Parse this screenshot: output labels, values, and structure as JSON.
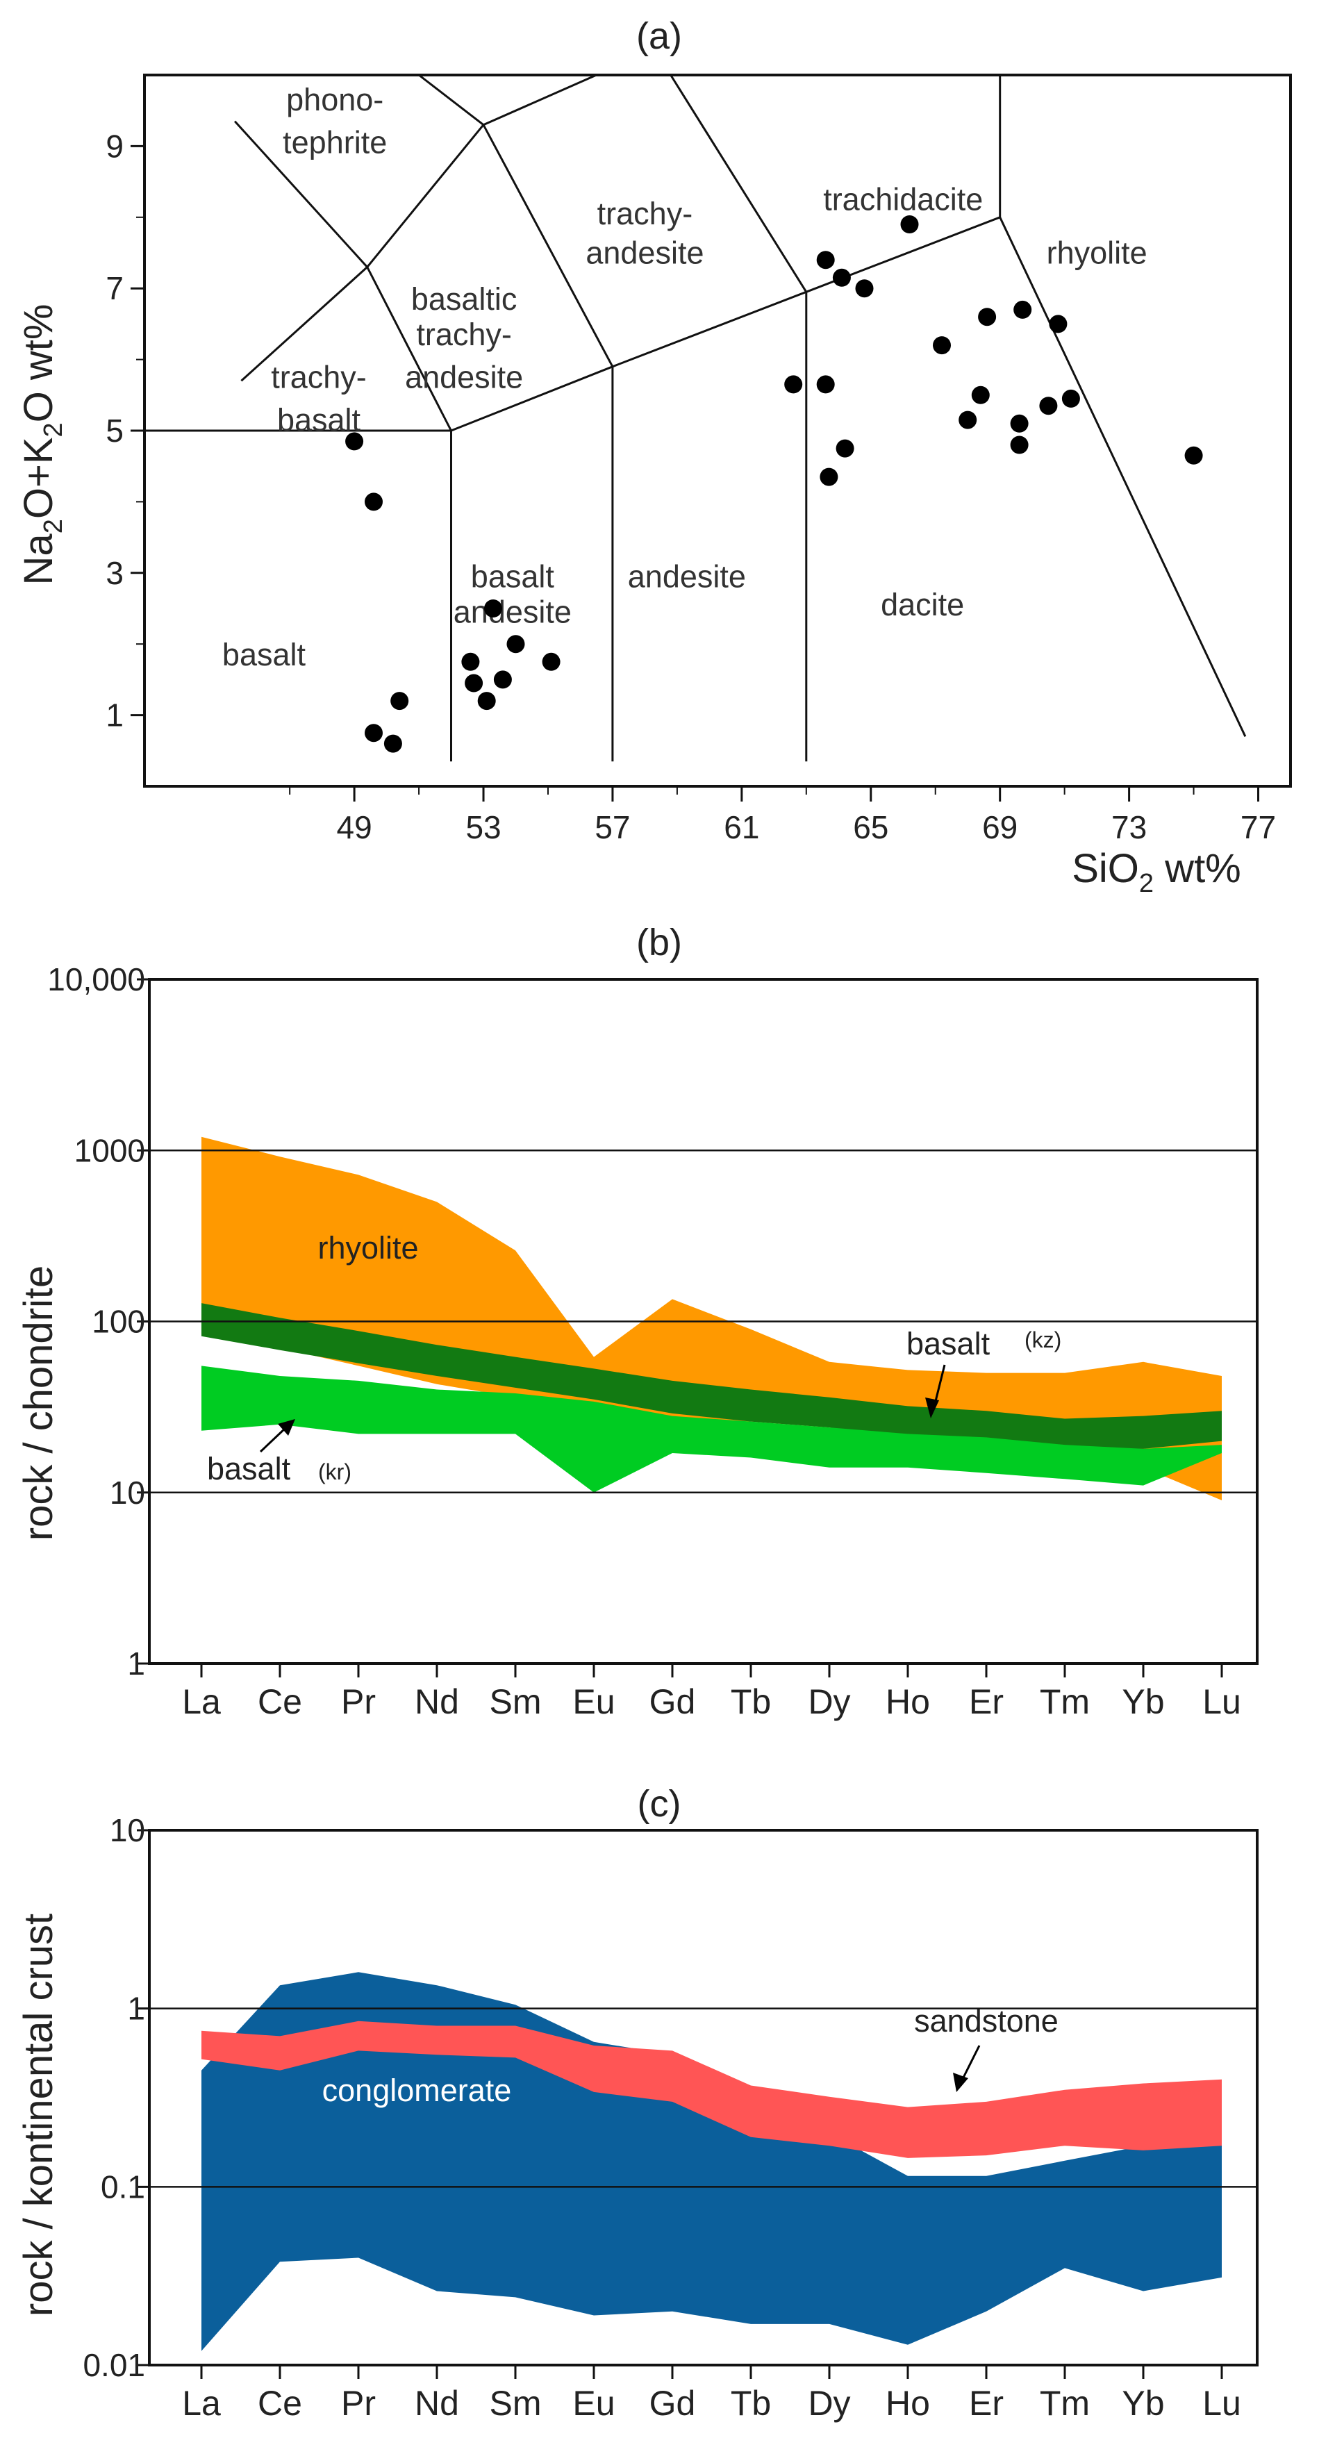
{
  "chart_data": [
    {
      "type": "scatter",
      "panel": "(a)",
      "title": "(a)",
      "xlabel": "SiO2 wt%",
      "ylabel": "Na2O+K2O wt%",
      "xlim": [
        42.5,
        78
      ],
      "ylim": [
        0,
        10
      ],
      "xticks": [
        49,
        53,
        57,
        61,
        65,
        69,
        73,
        77
      ],
      "yticks": [
        1,
        3,
        5,
        7,
        9
      ],
      "field_labels": [
        "phono-",
        "tephrite",
        "basaltic",
        "trachy-",
        "andesite",
        "trachy-",
        "andesite",
        "trachidacite",
        "rhyolite",
        "trachy-",
        "basalt",
        "basalt",
        "andesite",
        "andesite",
        "dacite",
        "basalt"
      ],
      "points": [
        [
          49,
          4.85
        ],
        [
          49.6,
          4.0
        ],
        [
          49.6,
          0.75
        ],
        [
          50.2,
          0.6
        ],
        [
          50.4,
          1.2
        ],
        [
          52.6,
          1.75
        ],
        [
          52.7,
          1.45
        ],
        [
          53.1,
          1.2
        ],
        [
          53.3,
          2.5
        ],
        [
          53.6,
          1.5
        ],
        [
          54.0,
          2.0
        ],
        [
          55.1,
          1.75
        ],
        [
          62.6,
          5.65
        ],
        [
          63.6,
          7.4
        ],
        [
          63.6,
          5.65
        ],
        [
          63.7,
          4.35
        ],
        [
          64.1,
          7.15
        ],
        [
          64.2,
          4.75
        ],
        [
          64.8,
          7.0
        ],
        [
          66.2,
          7.9
        ],
        [
          67.2,
          6.2
        ],
        [
          68.0,
          5.15
        ],
        [
          68.4,
          5.5
        ],
        [
          68.6,
          6.6
        ],
        [
          69.6,
          4.8
        ],
        [
          69.6,
          5.1
        ],
        [
          69.7,
          6.7
        ],
        [
          70.5,
          5.35
        ],
        [
          70.8,
          6.5
        ],
        [
          71.2,
          5.45
        ],
        [
          75.0,
          4.65
        ]
      ]
    },
    {
      "type": "area",
      "panel": "(b)",
      "title": "(b)",
      "ylabel": "rock / chondrite",
      "yscale": "log",
      "ylim": [
        1,
        10000
      ],
      "ytick_labels": [
        "1",
        "10",
        "100",
        "1000",
        "10,000"
      ],
      "categories": [
        "La",
        "Ce",
        "Pr",
        "Nd",
        "Sm",
        "Eu",
        "Gd",
        "Tb",
        "Dy",
        "Ho",
        "Er",
        "Tm",
        "Yb",
        "Lu"
      ],
      "series": [
        {
          "name": "rhyolite",
          "label": "rhyolite",
          "color": "#FF9900",
          "upper": [
            1200,
            920,
            720,
            500,
            260,
            62,
            135,
            90,
            58,
            52,
            50,
            50,
            58,
            48
          ],
          "lower": [
            85,
            70,
            55,
            43,
            36,
            22,
            25,
            26,
            24,
            20,
            17,
            16,
            14,
            9
          ]
        },
        {
          "name": "basalt (kz)",
          "label": "basalt",
          "sub": "(kz)",
          "color": "#127A12",
          "upper": [
            128,
            105,
            88,
            73,
            62,
            53,
            45,
            40,
            36,
            32,
            30,
            27,
            28,
            30
          ],
          "lower": [
            82,
            68,
            57,
            48,
            41,
            35,
            29,
            26,
            24,
            21,
            19,
            18,
            18,
            20
          ]
        },
        {
          "name": "basalt (kr)",
          "label": "basalt",
          "sub": "(kr)",
          "color": "#00CC22",
          "upper": [
            55,
            48,
            45,
            40,
            38,
            34,
            28,
            26,
            24,
            22,
            21,
            19,
            18,
            19
          ],
          "lower": [
            23,
            25,
            22,
            22,
            22,
            10,
            17,
            16,
            14,
            14,
            13,
            12,
            11,
            17
          ]
        }
      ]
    },
    {
      "type": "area",
      "panel": "(c)",
      "title": "(c)",
      "ylabel": "rock / kontinental crust",
      "yscale": "log",
      "ylim": [
        0.01,
        10
      ],
      "ytick_labels": [
        "0.01",
        "0.1",
        "1",
        "10"
      ],
      "categories": [
        "La",
        "Ce",
        "Pr",
        "Nd",
        "Sm",
        "Eu",
        "Gd",
        "Tb",
        "Dy",
        "Ho",
        "Er",
        "Tm",
        "Yb",
        "Lu"
      ],
      "series": [
        {
          "name": "conglomerate",
          "label": "conglomerate",
          "color": "#0B5F9B",
          "upper": [
            0.45,
            1.35,
            1.6,
            1.35,
            1.05,
            0.65,
            0.55,
            0.3,
            0.2,
            0.115,
            0.115,
            0.14,
            0.17,
            0.18
          ],
          "lower": [
            0.012,
            0.038,
            0.04,
            0.026,
            0.024,
            0.019,
            0.02,
            0.017,
            0.017,
            0.013,
            0.02,
            0.035,
            0.026,
            0.031
          ]
        },
        {
          "name": "sandstone",
          "label": "sandstone",
          "color": "#FF5555",
          "upper": [
            0.75,
            0.7,
            0.85,
            0.8,
            0.8,
            0.62,
            0.58,
            0.37,
            0.32,
            0.28,
            0.3,
            0.35,
            0.38,
            0.4
          ],
          "lower": [
            0.52,
            0.45,
            0.58,
            0.55,
            0.53,
            0.34,
            0.3,
            0.19,
            0.17,
            0.145,
            0.15,
            0.17,
            0.16,
            0.17
          ]
        }
      ]
    }
  ]
}
